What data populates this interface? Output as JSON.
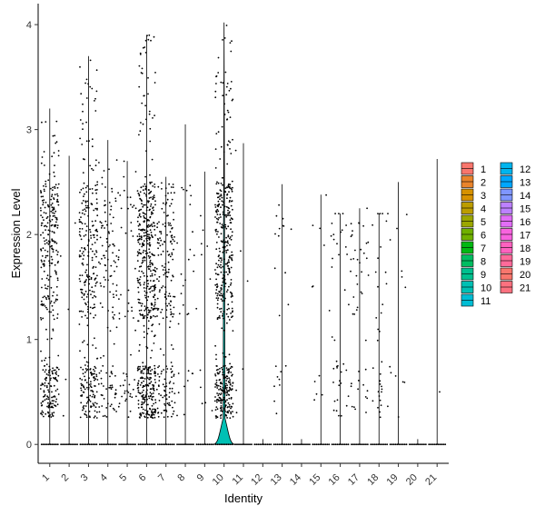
{
  "chart_data": {
    "type": "violin",
    "xlabel": "Identity",
    "ylabel": "Expression Level",
    "ylim": [
      -0.18,
      4.2
    ],
    "yticks": [
      0,
      1,
      2,
      3,
      4
    ],
    "categories": [
      "1",
      "2",
      "3",
      "4",
      "5",
      "6",
      "7",
      "8",
      "9",
      "10",
      "11",
      "12",
      "13",
      "14",
      "15",
      "16",
      "17",
      "18",
      "19",
      "20",
      "21"
    ],
    "max_expression": [
      3.2,
      2.75,
      3.7,
      2.9,
      2.7,
      3.9,
      2.55,
      3.05,
      2.6,
      4.02,
      2.87,
      0.05,
      2.48,
      0.05,
      2.38,
      2.2,
      2.25,
      2.2,
      2.5,
      0.05,
      2.72
    ],
    "expressing_points": [
      360,
      5,
      340,
      130,
      60,
      560,
      210,
      30,
      12,
      520,
      6,
      0,
      22,
      0,
      12,
      40,
      45,
      35,
      12,
      0,
      1
    ],
    "legend": {
      "position": "right",
      "entries": [
        {
          "label": "1",
          "color": "#F8766D"
        },
        {
          "label": "2",
          "color": "#E9842C"
        },
        {
          "label": "3",
          "color": "#D69100"
        },
        {
          "label": "4",
          "color": "#BC9D00"
        },
        {
          "label": "5",
          "color": "#9CA700"
        },
        {
          "label": "6",
          "color": "#6FB000"
        },
        {
          "label": "7",
          "color": "#00B813"
        },
        {
          "label": "8",
          "color": "#00BD61"
        },
        {
          "label": "9",
          "color": "#00C08E"
        },
        {
          "label": "10",
          "color": "#00C0B4"
        },
        {
          "label": "11",
          "color": "#00BDD4"
        },
        {
          "label": "12",
          "color": "#00B5EE"
        },
        {
          "label": "13",
          "color": "#00A7FF"
        },
        {
          "label": "14",
          "color": "#7F96FF"
        },
        {
          "label": "15",
          "color": "#BC81FF"
        },
        {
          "label": "16",
          "color": "#E26EF7"
        },
        {
          "label": "17",
          "color": "#F863DF"
        },
        {
          "label": "18",
          "color": "#FF62BF"
        },
        {
          "label": "19",
          "color": "#FF6A9A"
        },
        {
          "label": "20",
          "color": "#F8766D"
        },
        {
          "label": "21",
          "color": "#FC717F"
        }
      ]
    }
  }
}
